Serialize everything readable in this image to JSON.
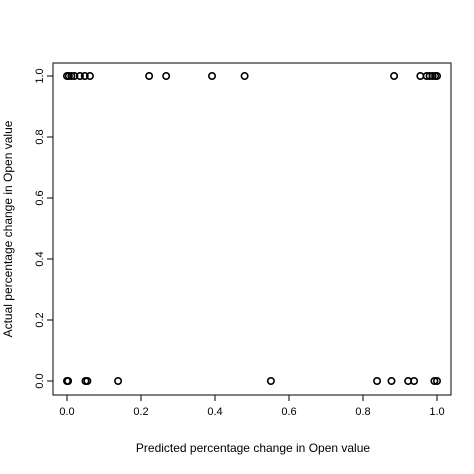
{
  "chart_data": {
    "type": "scatter",
    "title": "",
    "xlabel": "Predicted percentage change in Open value",
    "ylabel": "Actual percentage change in Open value",
    "xlim": [
      0.0,
      1.0
    ],
    "ylim": [
      0.0,
      1.0
    ],
    "xticks": [
      "0.0",
      "0.2",
      "0.4",
      "0.6",
      "0.8",
      "1.0"
    ],
    "yticks": [
      "0.0",
      "0.2",
      "0.4",
      "0.6",
      "0.8",
      "1.0"
    ],
    "grid": false,
    "legend": "none",
    "marker": "open-circle",
    "color": "#000000",
    "points": [
      {
        "x": 0.0,
        "y": 1
      },
      {
        "x": 0.005,
        "y": 1
      },
      {
        "x": 0.012,
        "y": 1
      },
      {
        "x": 0.02,
        "y": 1
      },
      {
        "x": 0.035,
        "y": 1
      },
      {
        "x": 0.048,
        "y": 1
      },
      {
        "x": 0.062,
        "y": 1
      },
      {
        "x": 0.222,
        "y": 1
      },
      {
        "x": 0.268,
        "y": 1
      },
      {
        "x": 0.392,
        "y": 1
      },
      {
        "x": 0.48,
        "y": 1
      },
      {
        "x": 0.884,
        "y": 1
      },
      {
        "x": 0.955,
        "y": 1
      },
      {
        "x": 0.972,
        "y": 1
      },
      {
        "x": 0.98,
        "y": 1
      },
      {
        "x": 0.988,
        "y": 1
      },
      {
        "x": 0.995,
        "y": 1
      },
      {
        "x": 1.0,
        "y": 1
      },
      {
        "x": 0.0,
        "y": 0
      },
      {
        "x": 0.003,
        "y": 0
      },
      {
        "x": 0.05,
        "y": 0
      },
      {
        "x": 0.055,
        "y": 0
      },
      {
        "x": 0.138,
        "y": 0
      },
      {
        "x": 0.551,
        "y": 0
      },
      {
        "x": 0.838,
        "y": 0
      },
      {
        "x": 0.877,
        "y": 0
      },
      {
        "x": 0.922,
        "y": 0
      },
      {
        "x": 0.938,
        "y": 0
      },
      {
        "x": 0.993,
        "y": 0
      },
      {
        "x": 1.0,
        "y": 0
      }
    ]
  }
}
